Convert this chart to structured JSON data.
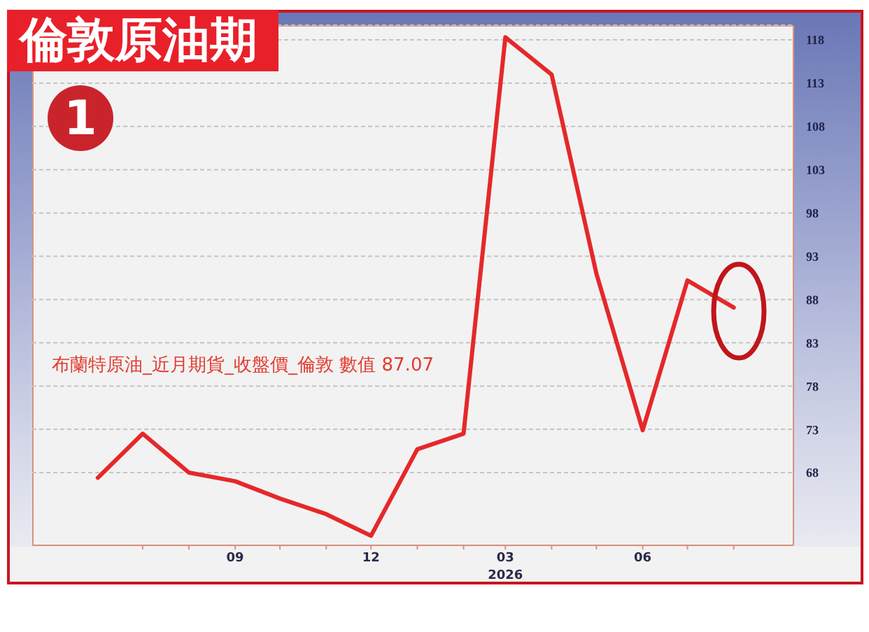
{
  "chart_data": {
    "type": "line",
    "title": "倫敦原油期",
    "annotations": [
      "1",
      "布蘭特原油_近月期貨_收盤價_倫敦 數值 87.07"
    ],
    "x": [
      "2025-06",
      "2025-07",
      "2025-08",
      "2025-09",
      "2025-10",
      "2025-11",
      "2025-12",
      "2026-01",
      "2026-02",
      "2026-03",
      "2026-04",
      "2026-05",
      "2026-06",
      "2026-07",
      "2026-08"
    ],
    "series": [
      {
        "color": "#e5282a",
        "values": [
          67.4,
          72.5,
          68.0,
          67.0,
          65.0,
          63.2,
          60.7,
          70.7,
          72.5,
          118.3,
          114.0,
          91.0,
          72.9,
          90.2,
          87.07
        ]
      }
    ],
    "xlim": [
      "2025-04-18",
      "2026-09-10"
    ],
    "xticks": [
      {
        "value": "2025-07",
        "label": null
      },
      {
        "value": "2025-08",
        "label": null
      },
      {
        "value": "2025-09",
        "label": "09"
      },
      {
        "value": "2025-10",
        "label": null
      },
      {
        "value": "2025-11",
        "label": null
      },
      {
        "value": "2025-12",
        "label": "12"
      },
      {
        "value": "2026-01",
        "label": null
      },
      {
        "value": "2026-02",
        "label": null
      },
      {
        "value": "2026-03",
        "label": "03\n2026"
      },
      {
        "value": "2026-04",
        "label": null
      },
      {
        "value": "2026-05",
        "label": null
      },
      {
        "value": "2026-06",
        "label": "06"
      },
      {
        "value": "2026-07",
        "label": null
      },
      {
        "value": "2026-08",
        "label": null
      }
    ],
    "ylim": [
      59.6,
      119.7
    ],
    "yticks": [
      68,
      73,
      78,
      83,
      88,
      93,
      98,
      103,
      108,
      113,
      118
    ],
    "grid": "y",
    "marker": "none",
    "line_style": "solid"
  }
}
